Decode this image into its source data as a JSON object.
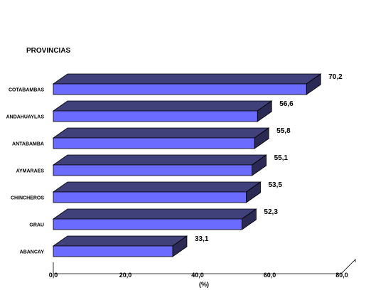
{
  "chart_data": {
    "type": "bar",
    "orientation": "horizontal",
    "title": "PROVINCIAS",
    "xlabel": "(%)",
    "ylabel": "",
    "categories": [
      "COTABAMBAS",
      "ANDAHUAYLAS",
      "ANTABAMBA",
      "AYMARAES",
      "CHINCHEROS",
      "GRAU",
      "ABANCAY"
    ],
    "values": [
      70.2,
      56.6,
      55.8,
      55.1,
      53.5,
      52.3,
      33.1
    ],
    "value_labels": [
      "70,2",
      "56,6",
      "55,8",
      "55,1",
      "53,5",
      "52,3",
      "33,1"
    ],
    "xlim": [
      0,
      80
    ],
    "xticks": [
      0,
      20,
      40,
      60,
      80
    ],
    "xtick_labels": [
      "0,0",
      "20,0",
      "40,0",
      "60,0",
      "80,0"
    ],
    "grid": false,
    "legend": "none",
    "style": "3d",
    "colors": {
      "bar_front": "#6b6bff",
      "bar_top": "#40407a",
      "bar_side": "#2a2a55",
      "outline": "#000000"
    }
  }
}
